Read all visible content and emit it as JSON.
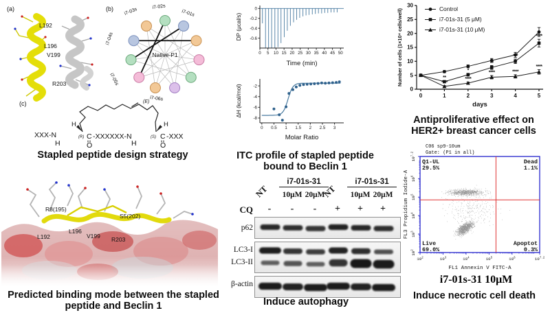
{
  "colors": {
    "itc_blue": "#47799f",
    "itc_point": "#2f618c",
    "flow_frame": "#2323cc",
    "quadrant_red": "#e03030",
    "live_blue": "#2525bb",
    "apoptot_green": "#1fa11f",
    "helix_yellow": "#e4de09",
    "helix_gray": "#c6c6c6"
  },
  "panels": {
    "design": {
      "tag_a": "(a)",
      "tag_b": "(b)",
      "tag_c": "(c)",
      "helix_residues": [
        "L192",
        "L196",
        "V199",
        "R203"
      ],
      "wheel_center": "Native-P1",
      "wheel_staples": [
        "i7-01s",
        "i7-02s",
        "i7-03s",
        "i7-04s",
        "i7-05s",
        "i7-06s"
      ],
      "chem": {
        "e": "(E)",
        "h": "H",
        "r": "(R)",
        "s": "(S)",
        "o": "O",
        "c": "C",
        "seq_left": "XXX-N",
        "seq_mid": "-XXXXXX-N",
        "seq_right": "-XXX"
      },
      "caption": "Stapled peptide design strategy"
    },
    "binding": {
      "labels": [
        "R8(195)",
        "S5(202)",
        "L192",
        "L196",
        "V199",
        "R203"
      ],
      "caption": "Predicted binding mode between the stapled peptide and Beclin 1"
    },
    "itc": {
      "caption": "ITC profile of stapled peptide bound to Beclin 1"
    },
    "western": {
      "nt_label": "NT",
      "group_labels": [
        "i7-01s-31",
        "i7-01s-31"
      ],
      "dose_labels": [
        "10μM",
        "20μM",
        "10μM",
        "20μM"
      ],
      "cq_label": "CQ",
      "cq_values": [
        "-",
        "-",
        "-",
        "+",
        "+",
        "+"
      ],
      "rows": [
        {
          "label": "p62",
          "bands": [
            0.85,
            0.8,
            0.75,
            0.9,
            0.85,
            0.8
          ]
        },
        {
          "label": "LC3-I",
          "bands": [
            0.95,
            0.75,
            0.65,
            0.9,
            0.8,
            0.5
          ]
        },
        {
          "label": "LC3-II",
          "bands": [
            0.35,
            0.45,
            0.35,
            0.75,
            1.0,
            0.95
          ]
        },
        {
          "label": "β-actin",
          "bands": [
            0.95,
            0.9,
            0.95,
            0.95,
            0.9,
            0.95
          ]
        }
      ],
      "caption": "Induce autophagy"
    },
    "proliferation": {
      "caption": "Antiproliferative effect on HER2+ breast cancer cells"
    },
    "flow": {
      "caption_sample": "i7-01s-31 10μM",
      "caption": "Induce necrotic cell death"
    }
  },
  "chart_data": [
    {
      "id": "itc_thermogram",
      "type": "line",
      "xlabel": "Time (min)",
      "ylabel": "DP (μcal/s)",
      "xlim": [
        0,
        52
      ],
      "ylim": [
        -0.8,
        0.06
      ],
      "xticks": [
        0,
        5,
        10,
        15,
        20,
        25,
        30,
        35,
        40,
        45,
        50
      ],
      "yticks": [
        0,
        -0.2,
        -0.4,
        -0.6
      ],
      "baseline": 0,
      "injection_times": [
        1.6,
        3.5,
        5.4,
        7.3,
        9.3,
        11.2,
        13.1,
        15.1,
        17,
        18.9,
        20.9,
        22.8,
        24.7,
        26.7,
        28.6,
        30.5,
        32.5,
        34.4,
        36.3,
        38.3,
        40.2,
        42.1,
        44.1,
        46,
        47.9
      ],
      "injection_depths": [
        -0.3,
        -0.82,
        -0.85,
        -0.84,
        -0.82,
        -0.78,
        -0.7,
        -0.58,
        -0.45,
        -0.35,
        -0.28,
        -0.23,
        -0.19,
        -0.16,
        -0.14,
        -0.13,
        -0.12,
        -0.11,
        -0.1,
        -0.1,
        -0.09,
        -0.09,
        -0.08,
        -0.08,
        -0.08
      ]
    },
    {
      "id": "itc_isotherm",
      "type": "scatter",
      "xlabel": "Molar Ratio",
      "ylabel": "ΔH (kcal/mol)",
      "xlim": [
        -0.08,
        3.38
      ],
      "ylim": [
        -8.9,
        -0.7
      ],
      "xticks": [
        0,
        0.5,
        1,
        1.5,
        2,
        2.5,
        3
      ],
      "xtick_labels": [
        "0",
        "0.5",
        "1",
        "1.5",
        "2",
        "2.5",
        "3"
      ],
      "yticks": [
        -2,
        -4,
        -6,
        -8
      ],
      "points": [
        [
          0.5,
          -6.3
        ],
        [
          0.72,
          -7.4
        ],
        [
          0.85,
          -8.4
        ],
        [
          1.0,
          -5.9
        ],
        [
          1.12,
          -3.4
        ],
        [
          1.28,
          -2.7
        ],
        [
          1.42,
          -2.2
        ],
        [
          1.57,
          -1.9
        ],
        [
          1.72,
          -1.75
        ],
        [
          1.87,
          -1.7
        ],
        [
          2.02,
          -1.65
        ],
        [
          2.17,
          -1.6
        ],
        [
          2.32,
          -1.55
        ],
        [
          2.47,
          -1.45
        ],
        [
          2.62,
          -1.5
        ],
        [
          2.77,
          -1.45
        ],
        [
          2.92,
          -1.4
        ],
        [
          3.07,
          -1.35
        ],
        [
          3.2,
          -1.25
        ]
      ],
      "fit": {
        "low": -7.5,
        "high": -1.5,
        "mid": 1.08,
        "slope": 10
      }
    },
    {
      "id": "proliferation",
      "type": "line",
      "xlabel": "days",
      "ylabel": "Number of cells (1×10⁴ cells/well)",
      "x": [
        0,
        1,
        2,
        3,
        4,
        5
      ],
      "ylim": [
        0,
        30
      ],
      "yticks": [
        0,
        5,
        10,
        15,
        20,
        25,
        30
      ],
      "legend_position": "top-left",
      "series": [
        {
          "name": "Control",
          "marker": "circle",
          "values": [
            5,
            6.3,
            8.2,
            10.3,
            12.3,
            20.5
          ],
          "errors": [
            0.3,
            0.4,
            0.5,
            0.7,
            0.9,
            1.6
          ],
          "sig": [
            "",
            "",
            "",
            "",
            "",
            ""
          ]
        },
        {
          "name": "i7-01s-31 (5 μM)",
          "marker": "square",
          "values": [
            5,
            2.7,
            5.2,
            7.8,
            10.0,
            16.5
          ],
          "errors": [
            0.3,
            0.4,
            0.5,
            0.7,
            0.8,
            1.4
          ],
          "sig": [
            "",
            "**",
            "*",
            "**",
            "***",
            "****"
          ]
        },
        {
          "name": "i7-01s-31 (10 μM)",
          "marker": "triangle",
          "values": [
            5,
            1.0,
            2.2,
            4.3,
            4.6,
            6.2
          ],
          "errors": [
            0.2,
            0.3,
            0.4,
            0.6,
            0.6,
            0.8
          ],
          "sig": [
            "",
            "****",
            "****",
            "****",
            "****",
            "****"
          ]
        }
      ]
    },
    {
      "id": "flow_cytometry",
      "type": "scatter",
      "header_line1": "C06 sp9-10um",
      "header_line2": "Gate: (P1 in all)",
      "xlabel": "FL1 Annexin V FITC-A",
      "ylabel": "FL3 Propidium Iodide-A",
      "xlim_log": [
        2,
        7.2
      ],
      "ylim_log": [
        2,
        7.2
      ],
      "ticks_log": [
        2,
        3,
        4,
        5,
        6,
        7.2
      ],
      "tick_labels": [
        "2",
        "3",
        "4",
        "5",
        "6",
        "7.2"
      ],
      "gate_x_log": 5.3,
      "gate_y_log": 4.85,
      "quadrants": [
        {
          "name": "Q1-UL",
          "value": "29.5%",
          "pos": "top-left",
          "color": "#e03030"
        },
        {
          "name": "Dead",
          "value": "1.1%",
          "pos": "top-right",
          "color": "#e03030"
        },
        {
          "name": "Live",
          "value": "69.0%",
          "pos": "bottom-left",
          "color": "#2525bb"
        },
        {
          "name": "Apoptot",
          "value": "0.3%",
          "pos": "bottom-right",
          "color": "#1fa11f"
        }
      ],
      "clusters": [
        {
          "cx_log": 3.95,
          "cy_log": 3.3,
          "sx": 0.42,
          "sy": 0.2,
          "rot_deg": 45,
          "n": 1100
        },
        {
          "cx_log": 4.0,
          "cy_log": 5.25,
          "sx": 0.75,
          "sy": 0.17,
          "rot_deg": 0,
          "n": 800
        },
        {
          "cx_log": 4.2,
          "cy_log": 4.3,
          "sx": 1.1,
          "sy": 0.85,
          "rot_deg": 0,
          "n": 260
        }
      ]
    }
  ]
}
